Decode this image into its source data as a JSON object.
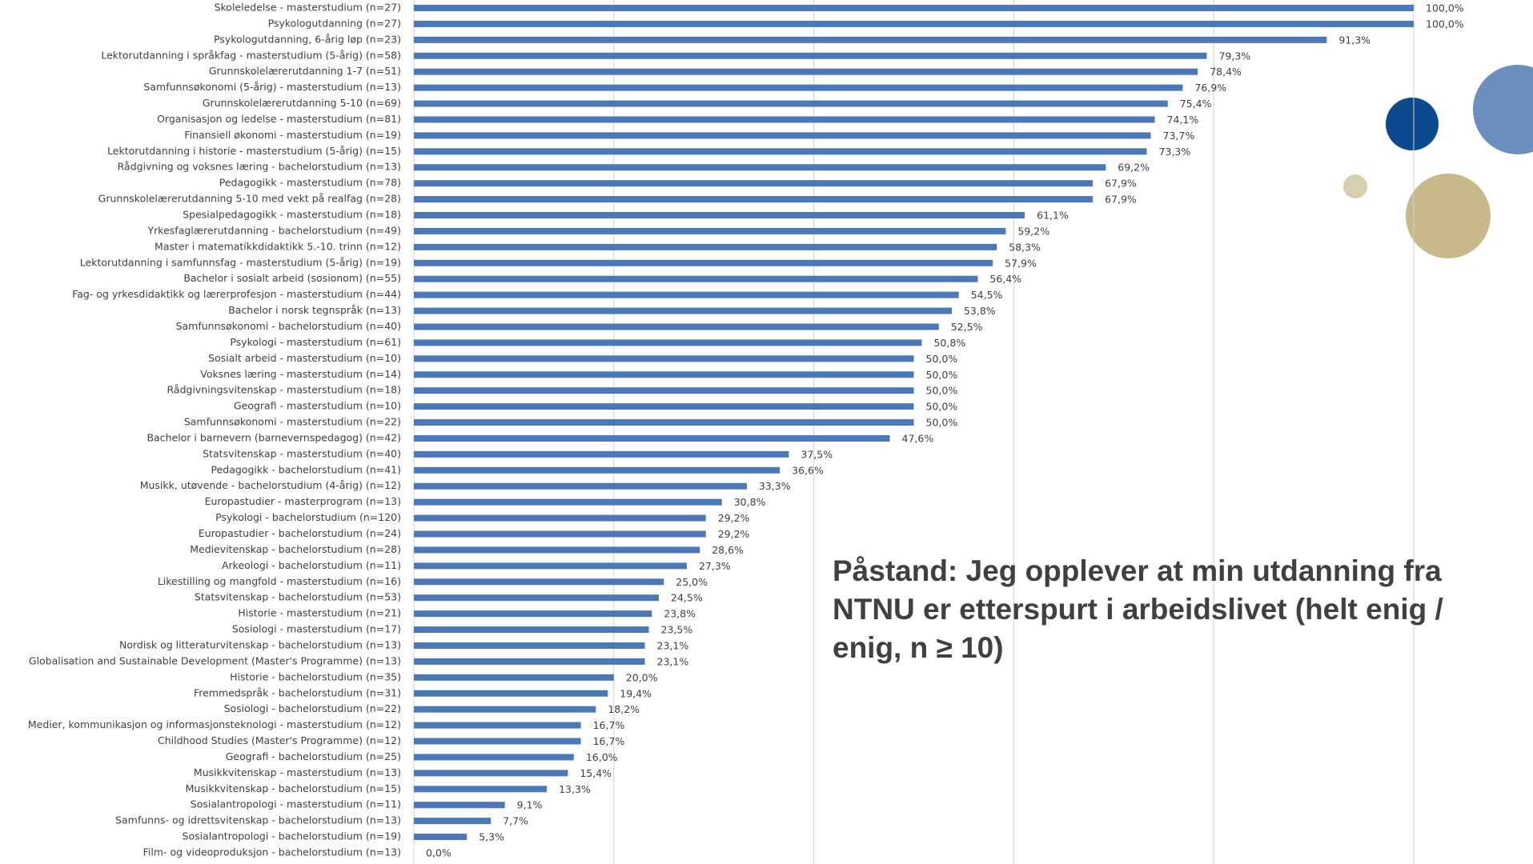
{
  "chart_data": {
    "type": "hbar",
    "title": "Påstand: Jeg opplever at min utdanning fra NTNU er etterspurt i arbeidslivet (helt enig / enig, n ≥ 10)",
    "categories": [
      "Skoleledelse - masterstudium (n=27)",
      "Psykologutdanning (n=27)",
      "Psykologutdanning, 6-årig løp (n=23)",
      "Lektorutdanning i språkfag - masterstudium (5-årig) (n=58)",
      "Grunnskolelærerutdanning 1-7 (n=51)",
      "Samfunnsøkonomi (5-årig) - masterstudium (n=13)",
      "Grunnskolelærerutdanning 5-10 (n=69)",
      "Organisasjon og ledelse - masterstudium (n=81)",
      "Finansiell økonomi - masterstudium (n=19)",
      "Lektorutdanning i historie - masterstudium (5-årig) (n=15)",
      "Rådgivning og voksnes læring - bachelorstudium (n=13)",
      "Pedagogikk - masterstudium (n=78)",
      "Grunnskolelærerutdanning 5-10 med vekt på realfag (n=28)",
      "Spesialpedagogikk - masterstudium (n=18)",
      "Yrkesfaglærerutdanning - bachelorstudium (n=49)",
      "Master i matematikkdidaktikk 5.-10. trinn (n=12)",
      "Lektorutdanning i samfunnsfag - masterstudium (5-årig) (n=19)",
      "Bachelor i sosialt arbeid (sosionom) (n=55)",
      "Fag- og yrkesdidaktikk og lærerprofesjon - masterstudium (n=44)",
      "Bachelor i norsk tegnspråk (n=13)",
      "Samfunnsøkonomi - bachelorstudium (n=40)",
      "Psykologi - masterstudium (n=61)",
      "Sosialt arbeid - masterstudium (n=10)",
      "Voksnes læring - masterstudium (n=14)",
      "Rådgivningsvitenskap - masterstudium (n=18)",
      "Geografi - masterstudium (n=10)",
      "Samfunnsøkonomi - masterstudium (n=22)",
      "Bachelor i barnevern (barnevernspedagog) (n=42)",
      "Statsvitenskap - masterstudium (n=40)",
      "Pedagogikk - bachelorstudium (n=41)",
      "Musikk, utøvende - bachelorstudium (4-årig) (n=12)",
      "Europastudier - masterprogram (n=13)",
      "Psykologi - bachelorstudium (n=120)",
      "Europastudier - bachelorstudium (n=24)",
      "Medievitenskap - bachelorstudium (n=28)",
      "Arkeologi - bachelorstudium (n=11)",
      "Likestilling og mangfold - masterstudium (n=16)",
      "Statsvitenskap - bachelorstudium (n=53)",
      "Historie - masterstudium (n=21)",
      "Sosiologi - masterstudium (n=17)",
      "Nordisk og litteraturvitenskap - bachelorstudium (n=13)",
      "Globalisation and Sustainable Development (Master's Programme) (n=13)",
      "Historie - bachelorstudium (n=35)",
      "Fremmedspråk - bachelorstudium (n=31)",
      "Sosiologi - bachelorstudium (n=22)",
      "Medier, kommunikasjon og informasjonsteknologi - masterstudium (n=12)",
      "Childhood Studies (Master's Programme) (n=12)",
      "Geografi - bachelorstudium (n=25)",
      "Musikkvitenskap - masterstudium (n=13)",
      "Musikkvitenskap - bachelorstudium (n=15)",
      "Sosialantropologi - masterstudium (n=11)",
      "Samfunns- og idrettsvitenskap - bachelorstudium (n=13)",
      "Sosialantropologi - bachelorstudium (n=19)",
      "Film- og videoproduksjon - bachelorstudium (n=13)"
    ],
    "values": [
      100,
      100,
      91.3,
      79.3,
      78.4,
      76.9,
      75.4,
      74.1,
      73.7,
      73.3,
      69.2,
      67.9,
      67.9,
      61.1,
      59.2,
      58.3,
      57.9,
      56.4,
      54.5,
      53.8,
      52.5,
      50.8,
      50,
      50,
      50,
      50,
      50,
      47.6,
      37.5,
      36.6,
      33.3,
      30.8,
      29.2,
      29.2,
      28.6,
      27.3,
      25,
      24.5,
      23.8,
      23.5,
      23.1,
      23.1,
      20,
      19.4,
      18.2,
      16.7,
      16.7,
      16,
      15.4,
      13.3,
      9.1,
      7.7,
      5.3,
      0
    ],
    "value_labels": [
      "100,0%",
      "100,0%",
      "91,3%",
      "79,3%",
      "78,4%",
      "76,9%",
      "75,4%",
      "74,1%",
      "73,7%",
      "73,3%",
      "69,2%",
      "67,9%",
      "67,9%",
      "61,1%",
      "59,2%",
      "58,3%",
      "57,9%",
      "56,4%",
      "54,5%",
      "53,8%",
      "52,5%",
      "50,8%",
      "50,0%",
      "50,0%",
      "50,0%",
      "50,0%",
      "50,0%",
      "47,6%",
      "37,5%",
      "36,6%",
      "33,3%",
      "30,8%",
      "29,2%",
      "29,2%",
      "28,6%",
      "27,3%",
      "25,0%",
      "24,5%",
      "23,8%",
      "23,5%",
      "23,1%",
      "23,1%",
      "20,0%",
      "19,4%",
      "18,2%",
      "16,7%",
      "16,7%",
      "16,0%",
      "15,4%",
      "13,3%",
      "9,1%",
      "7,7%",
      "5,3%",
      "0,0%"
    ],
    "color": "#4a78b8",
    "xlim": [
      0,
      100
    ],
    "xticks": [
      0,
      20,
      40,
      60,
      80,
      100
    ],
    "grid": true
  }
}
